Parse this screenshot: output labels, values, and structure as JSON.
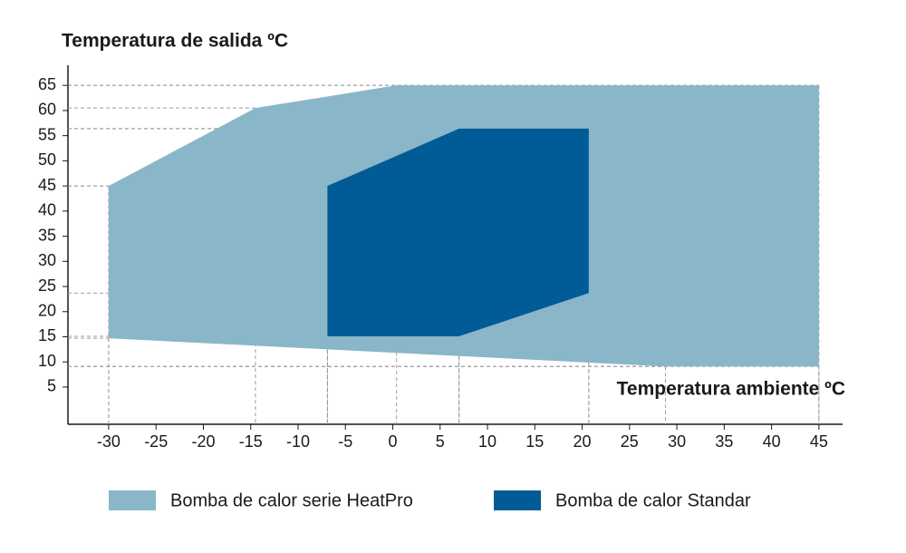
{
  "chart_data": {
    "type": "polygon",
    "title": "Temperatura de salida ºC",
    "x_label": "Temperatura ambiente ºC",
    "xlim": [
      -34.3,
      47.5
    ],
    "ylim": [
      -2.4,
      69
    ],
    "xticks": [
      -30,
      -25,
      -20,
      -15,
      -10,
      -5,
      0,
      5,
      10,
      15,
      20,
      25,
      30,
      35,
      40,
      45
    ],
    "yticks": [
      5,
      10,
      15,
      20,
      25,
      30,
      35,
      40,
      45,
      50,
      55,
      60,
      65
    ],
    "series": [
      {
        "name": "Bomba de calor serie HeatPro",
        "color": "#8ab6c9",
        "x": [
          -30,
          -14.5,
          0.4,
          45,
          45,
          28.8,
          -30
        ],
        "values": [
          45,
          60.5,
          65,
          65,
          9.1,
          9.1,
          14.7
        ]
      },
      {
        "name": "Bomba de calor Standar",
        "color": "#005b96",
        "x": [
          -6.9,
          7,
          20.7,
          20.7,
          7,
          -6.9
        ],
        "values": [
          45,
          56.4,
          56.4,
          23.7,
          15.1,
          15.1
        ]
      }
    ]
  }
}
